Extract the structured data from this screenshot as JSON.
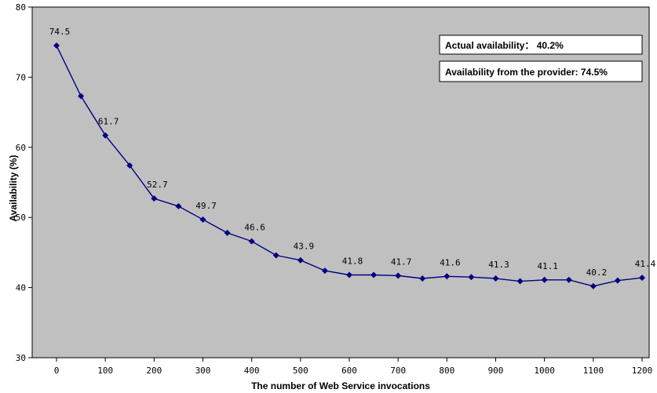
{
  "chart_data": {
    "type": "line",
    "xlabel": "The number of Web Service invocations",
    "ylabel": "Availability (%)",
    "xlim": [
      0,
      1200
    ],
    "ylim": [
      30,
      80
    ],
    "x_ticks": [
      0,
      100,
      200,
      300,
      400,
      500,
      600,
      700,
      800,
      900,
      1000,
      1100,
      1200
    ],
    "y_ticks": [
      30,
      40,
      50,
      60,
      70,
      80
    ],
    "grid": false,
    "background": "#c0c0c0",
    "series": [
      {
        "color": "#000080",
        "marker": "diamond",
        "x": [
          0,
          50,
          100,
          150,
          200,
          250,
          300,
          350,
          400,
          450,
          500,
          550,
          600,
          650,
          700,
          750,
          800,
          850,
          900,
          950,
          1000,
          1050,
          1100,
          1150,
          1200
        ],
        "values": [
          74.5,
          67.3,
          61.7,
          57.4,
          52.7,
          51.6,
          49.7,
          47.8,
          46.6,
          44.6,
          43.9,
          42.4,
          41.8,
          41.8,
          41.7,
          41.3,
          41.6,
          41.5,
          41.3,
          40.9,
          41.1,
          41.1,
          40.2,
          41.0,
          41.4
        ]
      }
    ],
    "data_labels": [
      {
        "x": 0,
        "text": "74.5"
      },
      {
        "x": 100,
        "text": "61.7"
      },
      {
        "x": 200,
        "text": "52.7"
      },
      {
        "x": 300,
        "text": "49.7"
      },
      {
        "x": 400,
        "text": "46.6"
      },
      {
        "x": 500,
        "text": "43.9"
      },
      {
        "x": 600,
        "text": "41.8"
      },
      {
        "x": 700,
        "text": "41.7"
      },
      {
        "x": 800,
        "text": "41.6"
      },
      {
        "x": 900,
        "text": "41.3"
      },
      {
        "x": 1000,
        "text": "41.1"
      },
      {
        "x": 1100,
        "text": "40.2"
      },
      {
        "x": 1200,
        "text": "41.4"
      }
    ],
    "annotations": [
      "Actual availability： 40.2%",
      "Availability from the provider: 74.5%"
    ]
  }
}
